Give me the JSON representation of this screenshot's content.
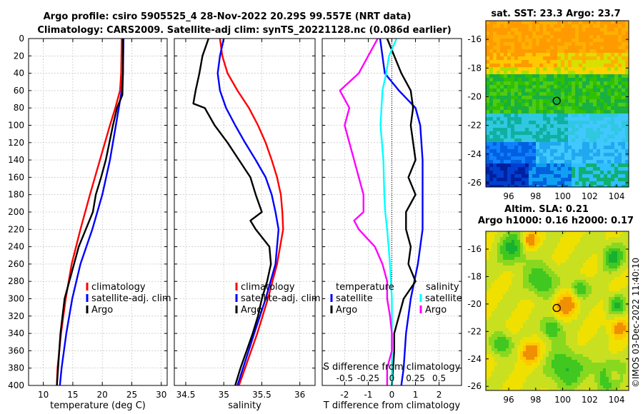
{
  "header": {
    "title_line1": "Argo profile: csiro 5905525_4 28-Nov-2022 20.29S 99.557E (NRT data)",
    "title_line2": "Climatology: CARS2009. Satellite-adj clim: synTS_20221128.nc (0.086d earlier)"
  },
  "side_label": "©IMOS 03-Dec-2022 11:40:10",
  "colors": {
    "climatology": "#ff0000",
    "satellite": "#0000ff",
    "argo": "#000000",
    "cyan": "#00ffff",
    "magenta": "#ff00ff"
  },
  "chart_data": [
    {
      "id": "temperature",
      "type": "line",
      "xlabel": "temperature (deg C)",
      "ylabel": "",
      "xlim": [
        7.5,
        31
      ],
      "ylim": [
        400,
        0
      ],
      "xticks": [
        10,
        15,
        20,
        25,
        30
      ],
      "yticks": [
        0,
        20,
        40,
        60,
        80,
        100,
        120,
        140,
        160,
        180,
        200,
        220,
        240,
        260,
        280,
        300,
        320,
        340,
        360,
        380,
        400
      ],
      "legend": {
        "position": "lower-right",
        "labels": [
          "climatology",
          "satellite-adj. clim",
          "Argo"
        ]
      },
      "series": [
        {
          "name": "climatology",
          "color": "#ff0000",
          "depth": [
            0,
            40,
            60,
            80,
            100,
            140,
            180,
            220,
            260,
            300,
            340,
            380,
            400
          ],
          "values": [
            23.3,
            23.2,
            23.0,
            22.2,
            21.3,
            19.6,
            17.9,
            16.3,
            14.8,
            13.8,
            13.0,
            12.4,
            12.3
          ]
        },
        {
          "name": "satellite-adj. clim",
          "color": "#0000ff",
          "depth": [
            0,
            40,
            60,
            80,
            100,
            140,
            180,
            220,
            260,
            300,
            340,
            380,
            400
          ],
          "values": [
            23.6,
            23.5,
            23.3,
            22.8,
            22.3,
            21.3,
            20.0,
            18.3,
            16.3,
            14.9,
            13.9,
            13.1,
            12.8
          ]
        },
        {
          "name": "Argo",
          "color": "#000000",
          "depth": [
            0,
            40,
            65,
            80,
            100,
            140,
            160,
            180,
            200,
            220,
            240,
            260,
            300,
            340,
            380,
            400
          ],
          "values": [
            23.5,
            23.5,
            23.4,
            22.5,
            21.8,
            20.6,
            19.8,
            18.9,
            18.4,
            17.2,
            16.0,
            15.2,
            13.6,
            12.9,
            12.5,
            12.3
          ]
        }
      ]
    },
    {
      "id": "salinity",
      "type": "line",
      "xlabel": "salinity",
      "ylabel": "",
      "xlim": [
        34.35,
        36.2
      ],
      "ylim": [
        400,
        0
      ],
      "xticks": [
        34.5,
        35,
        35.5,
        36
      ],
      "legend": {
        "position": "lower-right",
        "labels": [
          "climatology",
          "satellite-adj. clim",
          "Argo"
        ]
      },
      "series": [
        {
          "name": "climatology",
          "color": "#ff0000",
          "depth": [
            0,
            20,
            40,
            60,
            80,
            100,
            120,
            140,
            160,
            180,
            200,
            220,
            260,
            300,
            340,
            400
          ],
          "values": [
            34.95,
            34.98,
            35.05,
            35.18,
            35.33,
            35.45,
            35.55,
            35.63,
            35.7,
            35.75,
            35.77,
            35.78,
            35.7,
            35.58,
            35.44,
            35.2
          ]
        },
        {
          "name": "satellite-adj. clim",
          "color": "#0000ff",
          "depth": [
            0,
            20,
            40,
            60,
            80,
            100,
            120,
            140,
            160,
            180,
            200,
            220,
            260,
            300,
            340,
            400
          ],
          "values": [
            35.0,
            34.95,
            34.92,
            34.95,
            35.03,
            35.15,
            35.28,
            35.42,
            35.55,
            35.63,
            35.68,
            35.72,
            35.68,
            35.55,
            35.4,
            35.18
          ]
        },
        {
          "name": "Argo",
          "color": "#000000",
          "depth": [
            0,
            20,
            40,
            60,
            75,
            80,
            100,
            120,
            140,
            160,
            180,
            200,
            210,
            220,
            240,
            260,
            280,
            300,
            320,
            340,
            360,
            380,
            400
          ],
          "values": [
            34.8,
            34.72,
            34.68,
            34.63,
            34.6,
            34.75,
            34.88,
            35.05,
            35.2,
            35.35,
            35.42,
            35.5,
            35.35,
            35.42,
            35.6,
            35.62,
            35.57,
            35.5,
            35.45,
            35.38,
            35.3,
            35.22,
            35.15
          ]
        }
      ]
    },
    {
      "id": "difference",
      "type": "line",
      "xlabel": "T difference from climatology",
      "xlabel_top": "S difference from climatology",
      "xlim": [
        -2.95,
        2.95
      ],
      "ylim": [
        400,
        0
      ],
      "xticks": [
        -2,
        -1,
        0,
        1,
        2
      ],
      "xticks_s": [
        -0.5,
        -0.25,
        0,
        0.25,
        0.5
      ],
      "xtick_labels_s": [
        "-0.5",
        "-0.25",
        "0",
        "0.25",
        "0.5"
      ],
      "legend_temperature": {
        "title": "temperature",
        "labels": [
          "satellite",
          "Argo"
        ]
      },
      "legend_salinity": {
        "title": "salinity",
        "labels": [
          "satellite",
          "Argo"
        ]
      },
      "series": [
        {
          "name": "T satellite",
          "color": "#0000ff",
          "depth": [
            0,
            40,
            60,
            80,
            100,
            140,
            180,
            220,
            260,
            300,
            340,
            380,
            400
          ],
          "values": [
            -0.5,
            -0.3,
            0.3,
            1.0,
            1.2,
            1.3,
            1.3,
            1.3,
            1.1,
            0.8,
            0.6,
            0.5,
            0.4
          ]
        },
        {
          "name": "T Argo",
          "color": "#000000",
          "depth": [
            0,
            40,
            60,
            80,
            100,
            140,
            160,
            180,
            200,
            220,
            240,
            260,
            280,
            300,
            320,
            340,
            360,
            380,
            400
          ],
          "values": [
            -0.2,
            0.4,
            0.8,
            0.9,
            0.8,
            1.0,
            0.7,
            1.0,
            0.6,
            0.6,
            0.8,
            0.7,
            1.0,
            0.5,
            0.3,
            0.1,
            0.1,
            0.05,
            0.0
          ]
        },
        {
          "name": "S satellite",
          "color": "#00ffff",
          "depth": [
            0,
            20,
            40,
            60,
            100,
            140,
            180,
            200,
            220,
            260,
            300,
            340,
            380,
            400
          ],
          "values": [
            0.05,
            -0.03,
            -0.06,
            -0.1,
            -0.12,
            -0.09,
            -0.08,
            -0.07,
            -0.05,
            -0.02,
            0.0,
            0.0,
            0.0,
            0.0
          ]
        },
        {
          "name": "S Argo",
          "color": "#ff00ff",
          "depth": [
            0,
            20,
            40,
            60,
            80,
            100,
            120,
            140,
            160,
            180,
            200,
            210,
            220,
            240,
            260,
            280,
            300,
            320,
            340,
            360,
            380,
            400
          ],
          "values": [
            -0.15,
            -0.25,
            -0.35,
            -0.55,
            -0.45,
            -0.5,
            -0.45,
            -0.4,
            -0.35,
            -0.3,
            -0.3,
            -0.4,
            -0.35,
            -0.18,
            -0.1,
            -0.05,
            -0.05,
            -0.02,
            0.0,
            0.0,
            -0.05,
            -0.05
          ]
        }
      ]
    },
    {
      "id": "sst_map",
      "type": "heatmap",
      "title": "sat. SST: 23.3 Argo: 23.7",
      "xticks": [
        96,
        98,
        100,
        102,
        104
      ],
      "yticks": [
        -16,
        -18,
        -20,
        -22,
        -24,
        -26
      ],
      "xlim": [
        94.3,
        104.9
      ],
      "ylim": [
        -26.3,
        -14.7
      ],
      "marker": {
        "lon": 99.557,
        "lat": -20.29
      }
    },
    {
      "id": "sla_map",
      "type": "heatmap",
      "title_line1": "Altim. SLA: 0.21",
      "title_line2": "Argo h1000: 0.16 h2000: 0.17",
      "xticks": [
        96,
        98,
        100,
        102,
        104
      ],
      "yticks": [
        -16,
        -18,
        -20,
        -22,
        -24,
        -26
      ],
      "xlim": [
        94.3,
        104.9
      ],
      "ylim": [
        -26.3,
        -14.7
      ],
      "marker": {
        "lon": 99.557,
        "lat": -20.29
      }
    }
  ]
}
